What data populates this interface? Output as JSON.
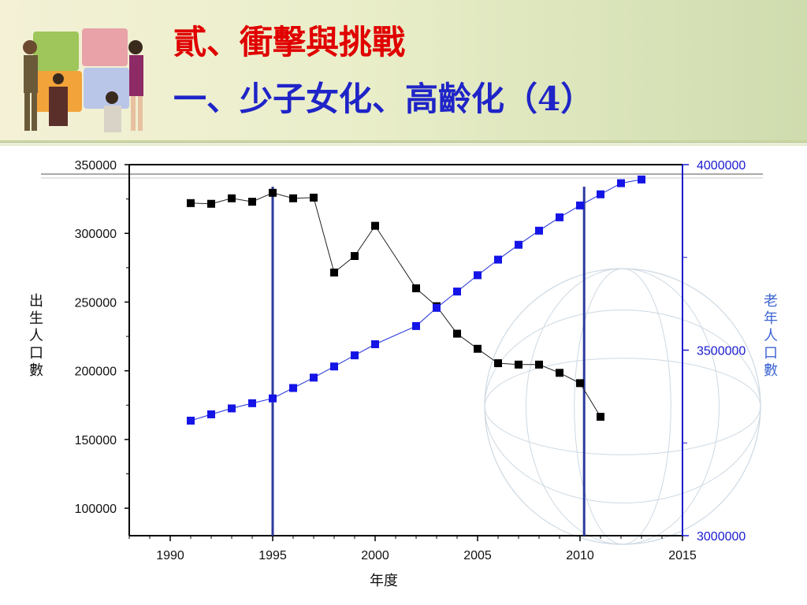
{
  "slide": {
    "title_line1": "貳、衝擊與挑戰",
    "title_line2": "一、少子女化、高齡化（4）",
    "colors": {
      "title_red": "#e00000",
      "title_blue": "#1f24c8",
      "header_bg": "#e9eec9"
    },
    "logo_icon": "puzzle-people-icon"
  },
  "chart_data": {
    "type": "line",
    "xlabel": "年度",
    "ylabel": "出生人口數",
    "y2label": "老年人口數",
    "xlim": [
      1988,
      2015
    ],
    "ylim": [
      80000,
      350000
    ],
    "y2lim": [
      3000000,
      4000000
    ],
    "x_ticks": [
      1990,
      1995,
      2000,
      2005,
      2010,
      2015
    ],
    "y_ticks": [
      100000,
      150000,
      200000,
      250000,
      300000,
      350000
    ],
    "y_tick_labels": [
      "100000",
      "150000",
      "200000",
      "250000",
      "300000",
      "350000"
    ],
    "y2_ticks": [
      3000000,
      3500000,
      4000000
    ],
    "y2_tick_labels": [
      "3000000",
      "3500000",
      "4000000"
    ],
    "vertical_markers": [
      1995,
      2010.2
    ],
    "series": [
      {
        "axis": "left",
        "color": "#000000",
        "x": [
          1991,
          1992,
          1993,
          1994,
          1995,
          1996,
          1997,
          1998,
          1999,
          2000,
          2002,
          2003,
          2004,
          2005,
          2006,
          2007,
          2008,
          2009,
          2010,
          2011
        ],
        "values": [
          322000,
          321500,
          325500,
          323000,
          329500,
          325500,
          326000,
          271500,
          283500,
          305500,
          260000,
          247000,
          227000,
          216000,
          205500,
          204500,
          204500,
          198500,
          191000,
          166500
        ]
      },
      {
        "axis": "right",
        "color": "#1414e6",
        "x": [
          1991,
          1992,
          1993,
          1994,
          1995,
          1996,
          1997,
          1998,
          1999,
          2000,
          2002,
          2003,
          2004,
          2005,
          2006,
          2007,
          2008,
          2009,
          2010,
          2011,
          2012,
          2013
        ],
        "values": [
          3310000,
          3327000,
          3343000,
          3357000,
          3370000,
          3398000,
          3426000,
          3456000,
          3486000,
          3516000,
          3565000,
          3614000,
          3658000,
          3702000,
          3744000,
          3784000,
          3822000,
          3858000,
          3890000,
          3920000,
          3950000,
          3960000
        ]
      }
    ]
  }
}
